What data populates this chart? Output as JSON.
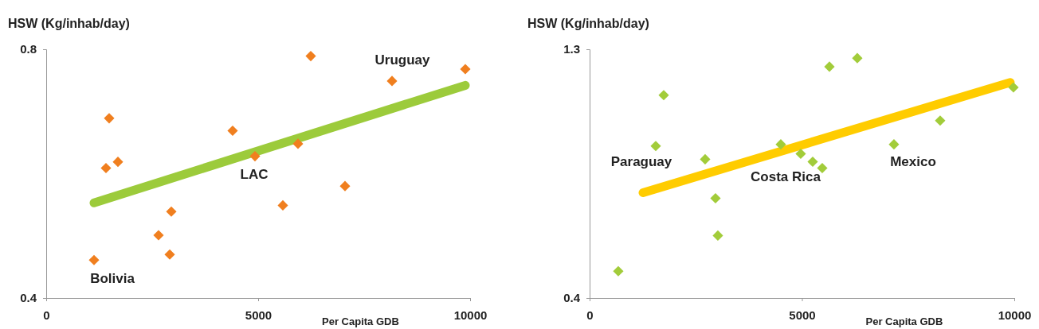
{
  "chart_data": [
    {
      "type": "scatter",
      "xlabel": "Per Capita GDB",
      "ylabel": "HSW (Kg/inhab/day)",
      "xlim": [
        0,
        10000
      ],
      "xticks": [
        0,
        5000,
        10000
      ],
      "ylim": [
        0.4,
        0.8
      ],
      "yticks": [
        0.4,
        0.8
      ],
      "grid": false,
      "series": [
        {
          "color": "#f07f1f",
          "marker": "diamond",
          "x": [
            1128,
            1410,
            1485,
            1692,
            2650,
            2914,
            2951,
            4398,
            4925,
            5583,
            5940,
            6241,
            7049,
            8158,
            9887
          ],
          "values": [
            0.461,
            0.609,
            0.689,
            0.619,
            0.501,
            0.47,
            0.539,
            0.669,
            0.628,
            0.549,
            0.648,
            0.789,
            0.58,
            0.749,
            0.768
          ]
        },
        {
          "type": "line",
          "color": "#9ccb3b",
          "x": [
            1128,
            9887
          ],
          "values": [
            0.553,
            0.742
          ]
        }
      ],
      "annotations": [
        "Bolivia",
        "LAC",
        "Uruguay"
      ]
    },
    {
      "type": "scatter",
      "xlabel": "Per Capita GDB",
      "ylabel": "HSW (Kg/inhab/day)",
      "xlim": [
        0,
        10000
      ],
      "xticks": [
        0,
        5000,
        10000
      ],
      "ylim": [
        0.4,
        1.3
      ],
      "yticks": [
        0.4,
        1.3
      ],
      "grid": false,
      "series": [
        {
          "color": "#a2cc3a",
          "marker": "diamond",
          "x": [
            675,
            1557,
            1745,
            2720,
            2964,
            3020,
            4502,
            4971,
            5253,
            5478,
            5647,
            6303,
            7166,
            8254,
            9980
          ],
          "values": [
            0.497,
            0.95,
            1.134,
            0.902,
            0.761,
            0.626,
            0.956,
            0.922,
            0.893,
            0.87,
            1.237,
            1.268,
            0.956,
            1.042,
            1.162
          ]
        },
        {
          "type": "line",
          "color": "#ffcc00",
          "x": [
            1257,
            9905
          ],
          "values": [
            0.781,
            1.18
          ]
        }
      ],
      "annotations": [
        "Paraguay",
        "Costa Rica",
        "Mexico"
      ]
    }
  ]
}
